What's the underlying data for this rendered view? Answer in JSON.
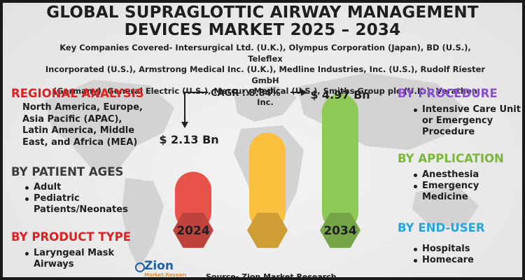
{
  "title_line1": "GLOBAL SUPRAGLOTTIC AIRWAY MANAGEMENT",
  "title_line2": "DEVICES MARKET 2025 – 2034",
  "companies_line1": "Key Companies Covered- Intersurgical Ltd. (U.K.), Olympus Corporation (Japan), BD (U.S.), Teleflex",
  "companies_line2": "Incorporated (U.S.), Armstrong Medical Inc. (U.K.), Medline Industries, Inc. (U.S.), Rudolf Riester GmbH",
  "companies_line3": "(Germany), General Electric (U.S.), Mercury Medical (U.S.), Smiths Group plc (U.K.), Verathon Inc.",
  "regional": {
    "heading": "REGIONAL ANALYSIS",
    "line1": "North America, Europe,",
    "line2": "Asia Pacific (APAC),",
    "line3": "Latin America, Middle",
    "line4": "East, and Africa (MEA)"
  },
  "patient_ages": {
    "heading": "BY PATIENT AGES",
    "item1": "Adult",
    "item2_line1": "Pediatric",
    "item2_line2": "Patients/Neonates"
  },
  "product_type": {
    "heading": "BY PRODUCT TYPE",
    "item1_line1": "Laryngeal Mask",
    "item1_line2": "Airways"
  },
  "procedure": {
    "heading": "BY PROCEDURE",
    "item1_line1": "Intensive Care Unit",
    "item1_line2": "or Emergency",
    "item1_line3": "Procedure"
  },
  "application": {
    "heading": "BY APPLICATION",
    "item1": "Anesthesia",
    "item2_line1": "Emergency",
    "item2_line2": "Medicine"
  },
  "end_user": {
    "heading": "BY END-USER",
    "item1": "Hospitals",
    "item2": "Homecare"
  },
  "source": "Source- Zion Market Research",
  "logo": {
    "brand": "Zion",
    "sub": "Market.Research"
  },
  "colors": {
    "regional_heading": "#e02020",
    "patient_heading": "#3a3a3a",
    "product_heading": "#e02020",
    "procedure_heading": "#8a4fd0",
    "application_heading": "#7ab83c",
    "end_user_heading": "#2aa5d8",
    "bar_2024": "#e8524a",
    "bar_mid": "#fbbf3e",
    "bar_2034": "#8fc955"
  },
  "chart_data": {
    "type": "bar",
    "categories": [
      "2024",
      "",
      "2034"
    ],
    "value_labels": [
      "$ 2.13 Bn",
      "",
      "$ 4.97 Bn"
    ],
    "values": [
      2.13,
      null,
      4.97
    ],
    "cagr_label": "CAGR : 8.84%"
  }
}
